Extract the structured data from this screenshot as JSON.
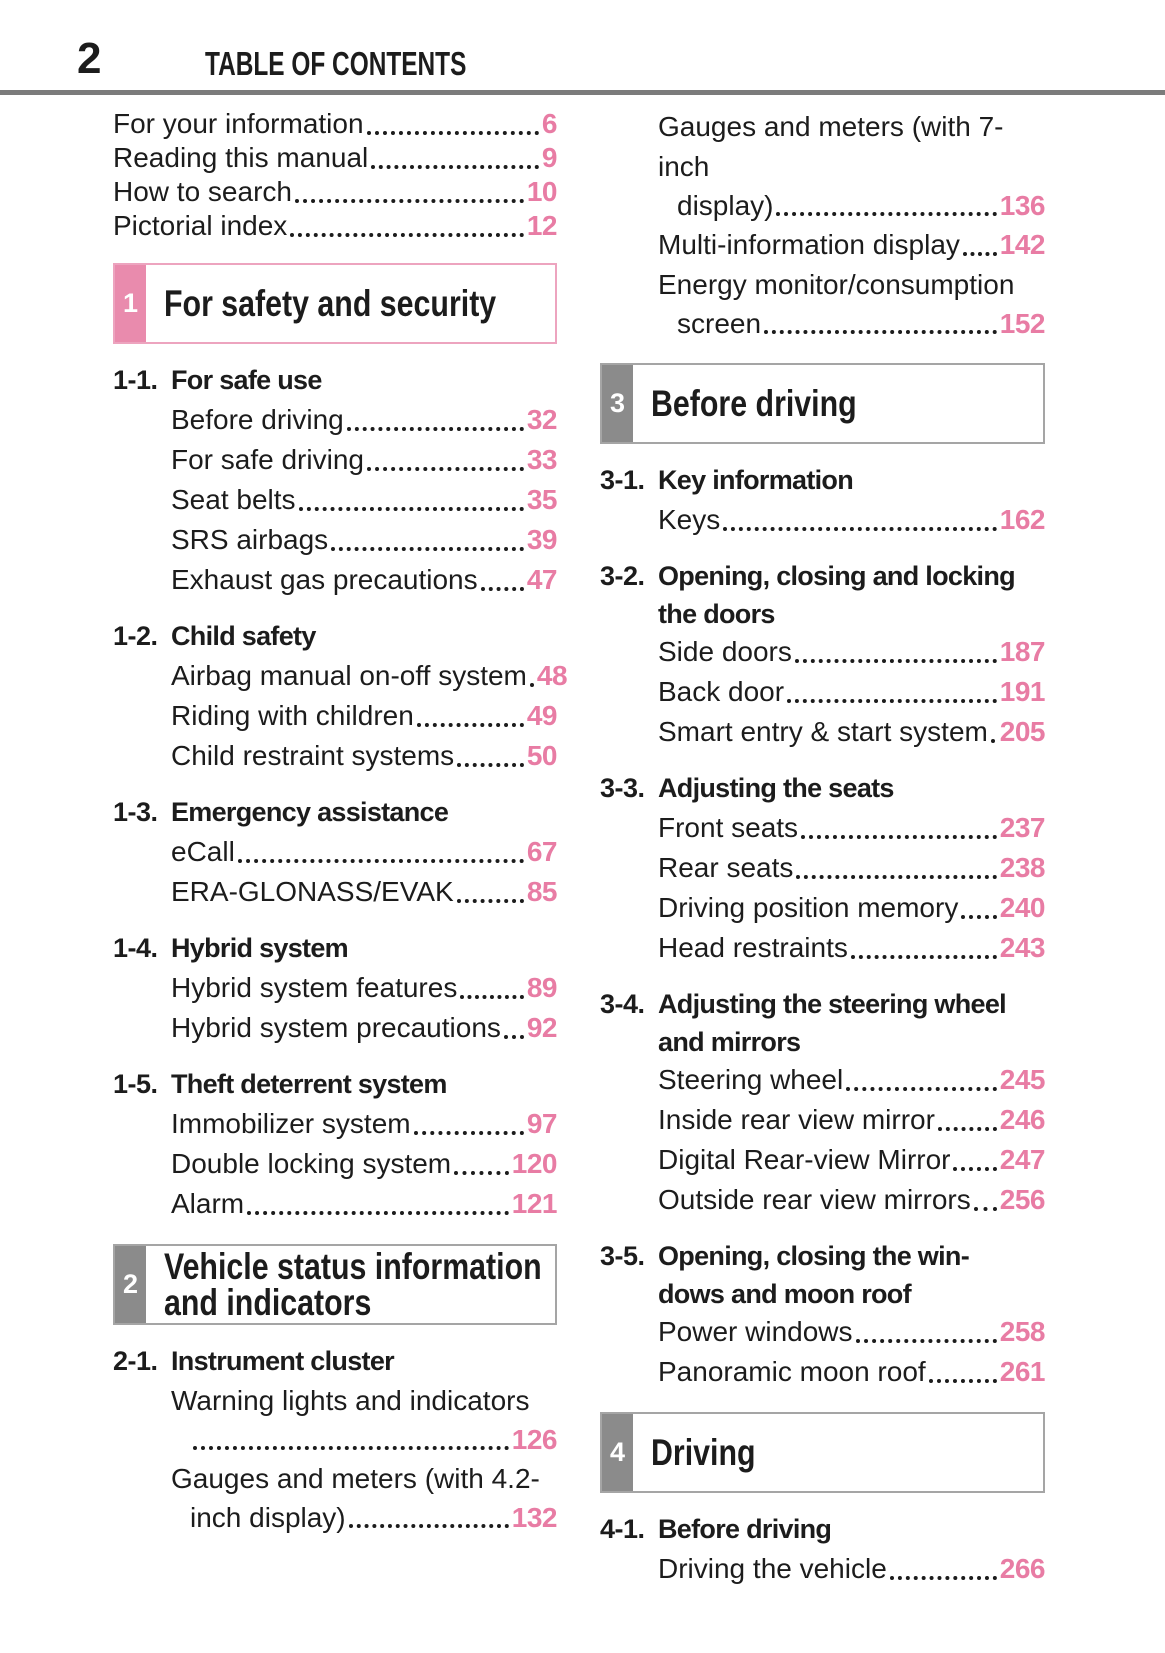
{
  "header": {
    "page_number": "2",
    "title": "TABLE OF CONTENTS"
  },
  "colors": {
    "page_number_pink": "#e87ca4",
    "chapter1_tab_pink": "#e98bad",
    "chapter1_border_pink": "#eda4bf",
    "chapter_tab_gray": "#8b8b8b",
    "chapter_border_gray": "#a5a5a5",
    "header_rule_gray": "#7b7b7b",
    "text_ink": "#1c1c1c"
  },
  "columns": {
    "left": [
      {
        "type": "toc_top",
        "text": "For your information",
        "page": "6"
      },
      {
        "type": "toc_top",
        "text": "Reading this manual",
        "page": "9"
      },
      {
        "type": "toc_top",
        "text": "How to search",
        "page": "10"
      },
      {
        "type": "toc_top",
        "text": "Pictorial index",
        "page": "12"
      },
      {
        "type": "box",
        "number": "1",
        "accent": "pink",
        "title_lines": [
          "For safety and security"
        ]
      },
      {
        "type": "heading",
        "label": "1-1.",
        "title_lines": [
          "For safe use"
        ]
      },
      {
        "type": "entry",
        "lines": [
          "Before driving"
        ],
        "page": "32"
      },
      {
        "type": "entry",
        "lines": [
          "For safe driving"
        ],
        "page": "33"
      },
      {
        "type": "entry",
        "lines": [
          "Seat belts"
        ],
        "page": "35"
      },
      {
        "type": "entry",
        "lines": [
          "SRS airbags"
        ],
        "page": "39"
      },
      {
        "type": "entry",
        "lines": [
          "Exhaust gas precautions"
        ],
        "page": "47"
      },
      {
        "type": "heading",
        "label": "1-2.",
        "title_lines": [
          "Child safety"
        ]
      },
      {
        "type": "entry",
        "lines": [
          "Airbag manual on-off system"
        ],
        "page": "48"
      },
      {
        "type": "entry",
        "lines": [
          "Riding with children"
        ],
        "page": "49"
      },
      {
        "type": "entry",
        "lines": [
          "Child restraint systems"
        ],
        "page": "50"
      },
      {
        "type": "heading",
        "label": "1-3.",
        "title_lines": [
          "Emergency assistance"
        ]
      },
      {
        "type": "entry",
        "lines": [
          "eCall"
        ],
        "page": "67"
      },
      {
        "type": "entry",
        "lines": [
          "ERA-GLONASS/EVAK"
        ],
        "page": "85"
      },
      {
        "type": "heading",
        "label": "1-4.",
        "title_lines": [
          "Hybrid system"
        ]
      },
      {
        "type": "entry",
        "lines": [
          "Hybrid system features"
        ],
        "page": "89"
      },
      {
        "type": "entry",
        "lines": [
          "Hybrid system precautions"
        ],
        "page": "92"
      },
      {
        "type": "heading",
        "label": "1-5.",
        "title_lines": [
          "Theft deterrent system"
        ]
      },
      {
        "type": "entry",
        "lines": [
          "Immobilizer system"
        ],
        "page": "97"
      },
      {
        "type": "entry",
        "lines": [
          "Double locking system"
        ],
        "page": "120"
      },
      {
        "type": "entry",
        "lines": [
          "Alarm"
        ],
        "page": "121"
      },
      {
        "type": "box",
        "number": "2",
        "accent": "gray",
        "title_lines": [
          "Vehicle status information",
          "and indicators"
        ]
      },
      {
        "type": "heading",
        "label": "2-1.",
        "title_lines": [
          "Instrument cluster"
        ]
      },
      {
        "type": "entry",
        "lines": [
          "Warning lights and indicators",
          ""
        ],
        "page": "126"
      },
      {
        "type": "entry",
        "lines": [
          "Gauges and meters (with 4.2-",
          "inch display)"
        ],
        "page": "132"
      }
    ],
    "right": [
      {
        "type": "entry",
        "lines": [
          "Gauges and meters (with 7-inch",
          "display)"
        ],
        "page": "136"
      },
      {
        "type": "entry",
        "lines": [
          "Multi-information display"
        ],
        "page": "142"
      },
      {
        "type": "entry",
        "lines": [
          "Energy monitor/consumption",
          "screen"
        ],
        "page": "152"
      },
      {
        "type": "box",
        "number": "3",
        "accent": "gray",
        "title_lines": [
          "Before driving"
        ]
      },
      {
        "type": "heading",
        "label": "3-1.",
        "title_lines": [
          "Key information"
        ]
      },
      {
        "type": "entry",
        "lines": [
          "Keys"
        ],
        "page": "162"
      },
      {
        "type": "heading",
        "label": "3-2.",
        "title_lines": [
          "Opening, closing and locking",
          "the doors"
        ]
      },
      {
        "type": "entry",
        "lines": [
          "Side doors"
        ],
        "page": "187"
      },
      {
        "type": "entry",
        "lines": [
          "Back door"
        ],
        "page": "191"
      },
      {
        "type": "entry",
        "lines": [
          "Smart entry & start system"
        ],
        "page": "205"
      },
      {
        "type": "heading",
        "label": "3-3.",
        "title_lines": [
          "Adjusting the seats"
        ]
      },
      {
        "type": "entry",
        "lines": [
          "Front seats"
        ],
        "page": "237"
      },
      {
        "type": "entry",
        "lines": [
          "Rear seats"
        ],
        "page": "238"
      },
      {
        "type": "entry",
        "lines": [
          "Driving position memory"
        ],
        "page": "240"
      },
      {
        "type": "entry",
        "lines": [
          "Head restraints"
        ],
        "page": "243"
      },
      {
        "type": "heading",
        "label": "3-4.",
        "title_lines": [
          "Adjusting the steering wheel",
          "and mirrors"
        ]
      },
      {
        "type": "entry",
        "lines": [
          "Steering wheel"
        ],
        "page": "245"
      },
      {
        "type": "entry",
        "lines": [
          "Inside rear view mirror"
        ],
        "page": "246"
      },
      {
        "type": "entry",
        "lines": [
          "Digital Rear-view Mirror"
        ],
        "page": "247"
      },
      {
        "type": "entry",
        "lines": [
          "Outside rear view mirrors"
        ],
        "page": "256"
      },
      {
        "type": "heading",
        "label": "3-5.",
        "title_lines": [
          "Opening, closing the win-",
          "dows and moon roof"
        ]
      },
      {
        "type": "entry",
        "lines": [
          "Power windows"
        ],
        "page": "258"
      },
      {
        "type": "entry",
        "lines": [
          "Panoramic moon roof"
        ],
        "page": "261"
      },
      {
        "type": "box",
        "number": "4",
        "accent": "gray",
        "title_lines": [
          "Driving"
        ]
      },
      {
        "type": "heading",
        "label": "4-1.",
        "title_lines": [
          "Before driving"
        ]
      },
      {
        "type": "entry",
        "lines": [
          "Driving the vehicle"
        ],
        "page": "266"
      }
    ]
  }
}
